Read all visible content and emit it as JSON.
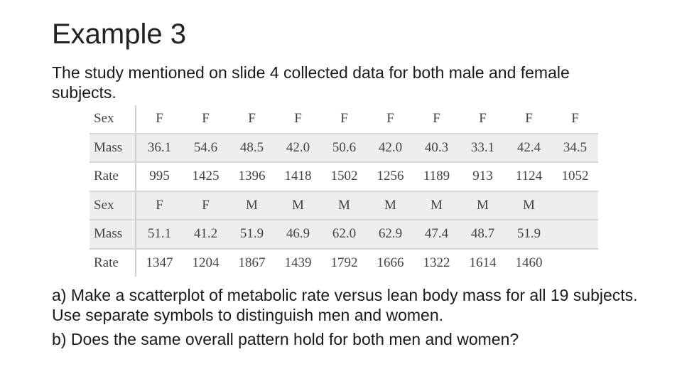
{
  "slide": {
    "title": "Example 3",
    "intro": "The study mentioned on slide 4 collected data for both male and female subjects."
  },
  "table": {
    "rows": [
      {
        "label": "Sex",
        "cells": [
          "F",
          "F",
          "F",
          "F",
          "F",
          "F",
          "F",
          "F",
          "F",
          "F"
        ]
      },
      {
        "label": "Mass",
        "cells": [
          "36.1",
          "54.6",
          "48.5",
          "42.0",
          "50.6",
          "42.0",
          "40.3",
          "33.1",
          "42.4",
          "34.5"
        ]
      },
      {
        "label": "Rate",
        "cells": [
          "995",
          "1425",
          "1396",
          "1418",
          "1502",
          "1256",
          "1189",
          "913",
          "1124",
          "1052"
        ]
      },
      {
        "label": "Sex",
        "cells": [
          "F",
          "F",
          "M",
          "M",
          "M",
          "M",
          "M",
          "M",
          "M",
          ""
        ]
      },
      {
        "label": "Mass",
        "cells": [
          "51.1",
          "41.2",
          "51.9",
          "46.9",
          "62.0",
          "62.9",
          "47.4",
          "48.7",
          "51.9",
          ""
        ]
      },
      {
        "label": "Rate",
        "cells": [
          "1347",
          "1204",
          "1867",
          "1439",
          "1792",
          "1666",
          "1322",
          "1614",
          "1460",
          ""
        ]
      }
    ],
    "shaded_rows": [
      1,
      3,
      4
    ]
  },
  "questions": {
    "a": "a)  Make a scatterplot of metabolic rate versus lean body mass for all 19 subjects.  Use separate symbols to distinguish men and women.",
    "b": "b)  Does the same overall pattern hold for both men and women?"
  }
}
